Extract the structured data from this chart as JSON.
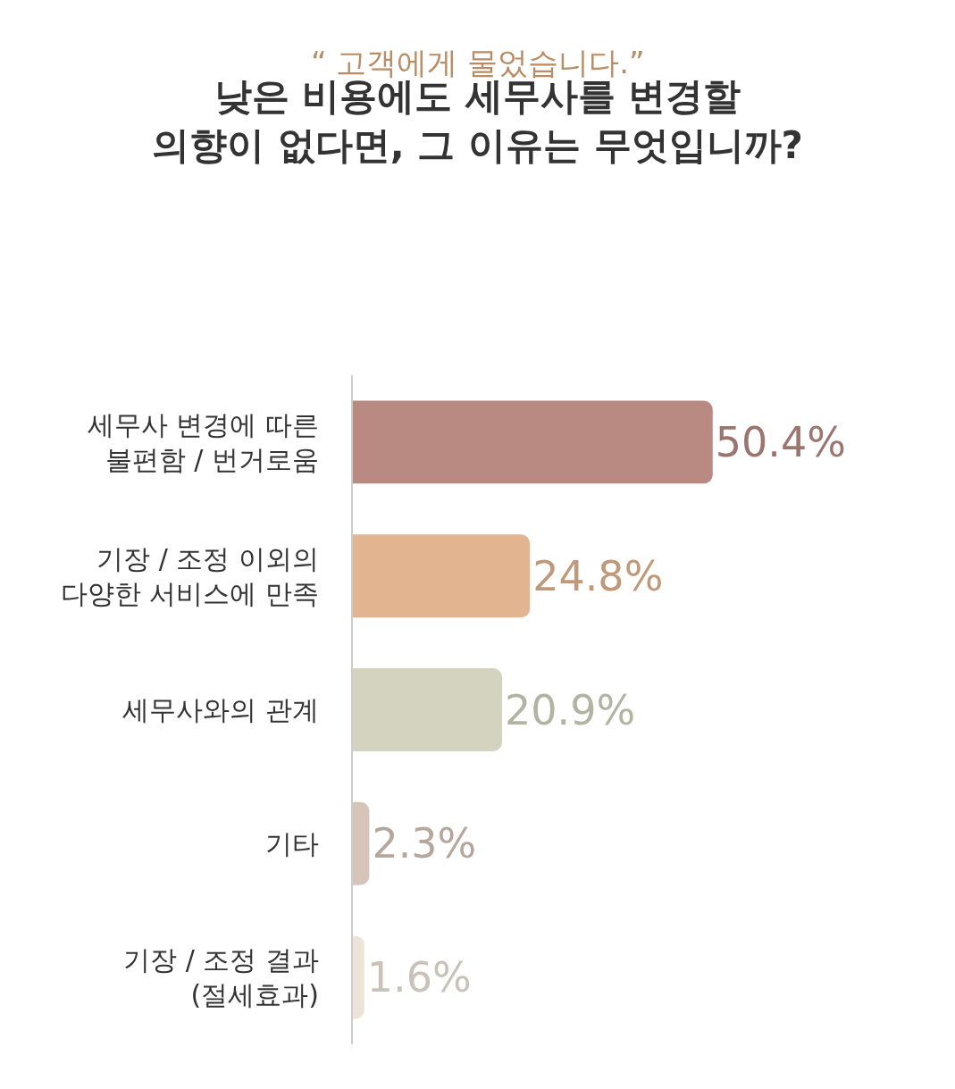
{
  "chart_data": {
    "type": "bar",
    "orientation": "horizontal",
    "subtitle": "“ 고객에게 물었습니다.”",
    "title": "낮은 비용에도 세무사를 변경할\n의향이 없다면, 그 이유는 무엇입니까?",
    "categories": [
      "세무사 변경에 따른\n불편함 / 번거로움",
      "기장 / 조정 이외의\n다양한 서비스에 만족",
      "세무사와의 관계",
      "기타",
      "기장 / 조정 결과\n(절세효과)"
    ],
    "values": [
      50.4,
      24.8,
      20.9,
      2.3,
      1.6
    ],
    "value_labels": [
      "50.4%",
      "24.8%",
      "20.9%",
      "2.3%",
      "1.6%"
    ],
    "colors": [
      "#b98a82",
      "#e2b48f",
      "#d3d3c0",
      "#d5c4b7",
      "#ece4d8"
    ],
    "tick_labels": "y",
    "grid": false
  }
}
